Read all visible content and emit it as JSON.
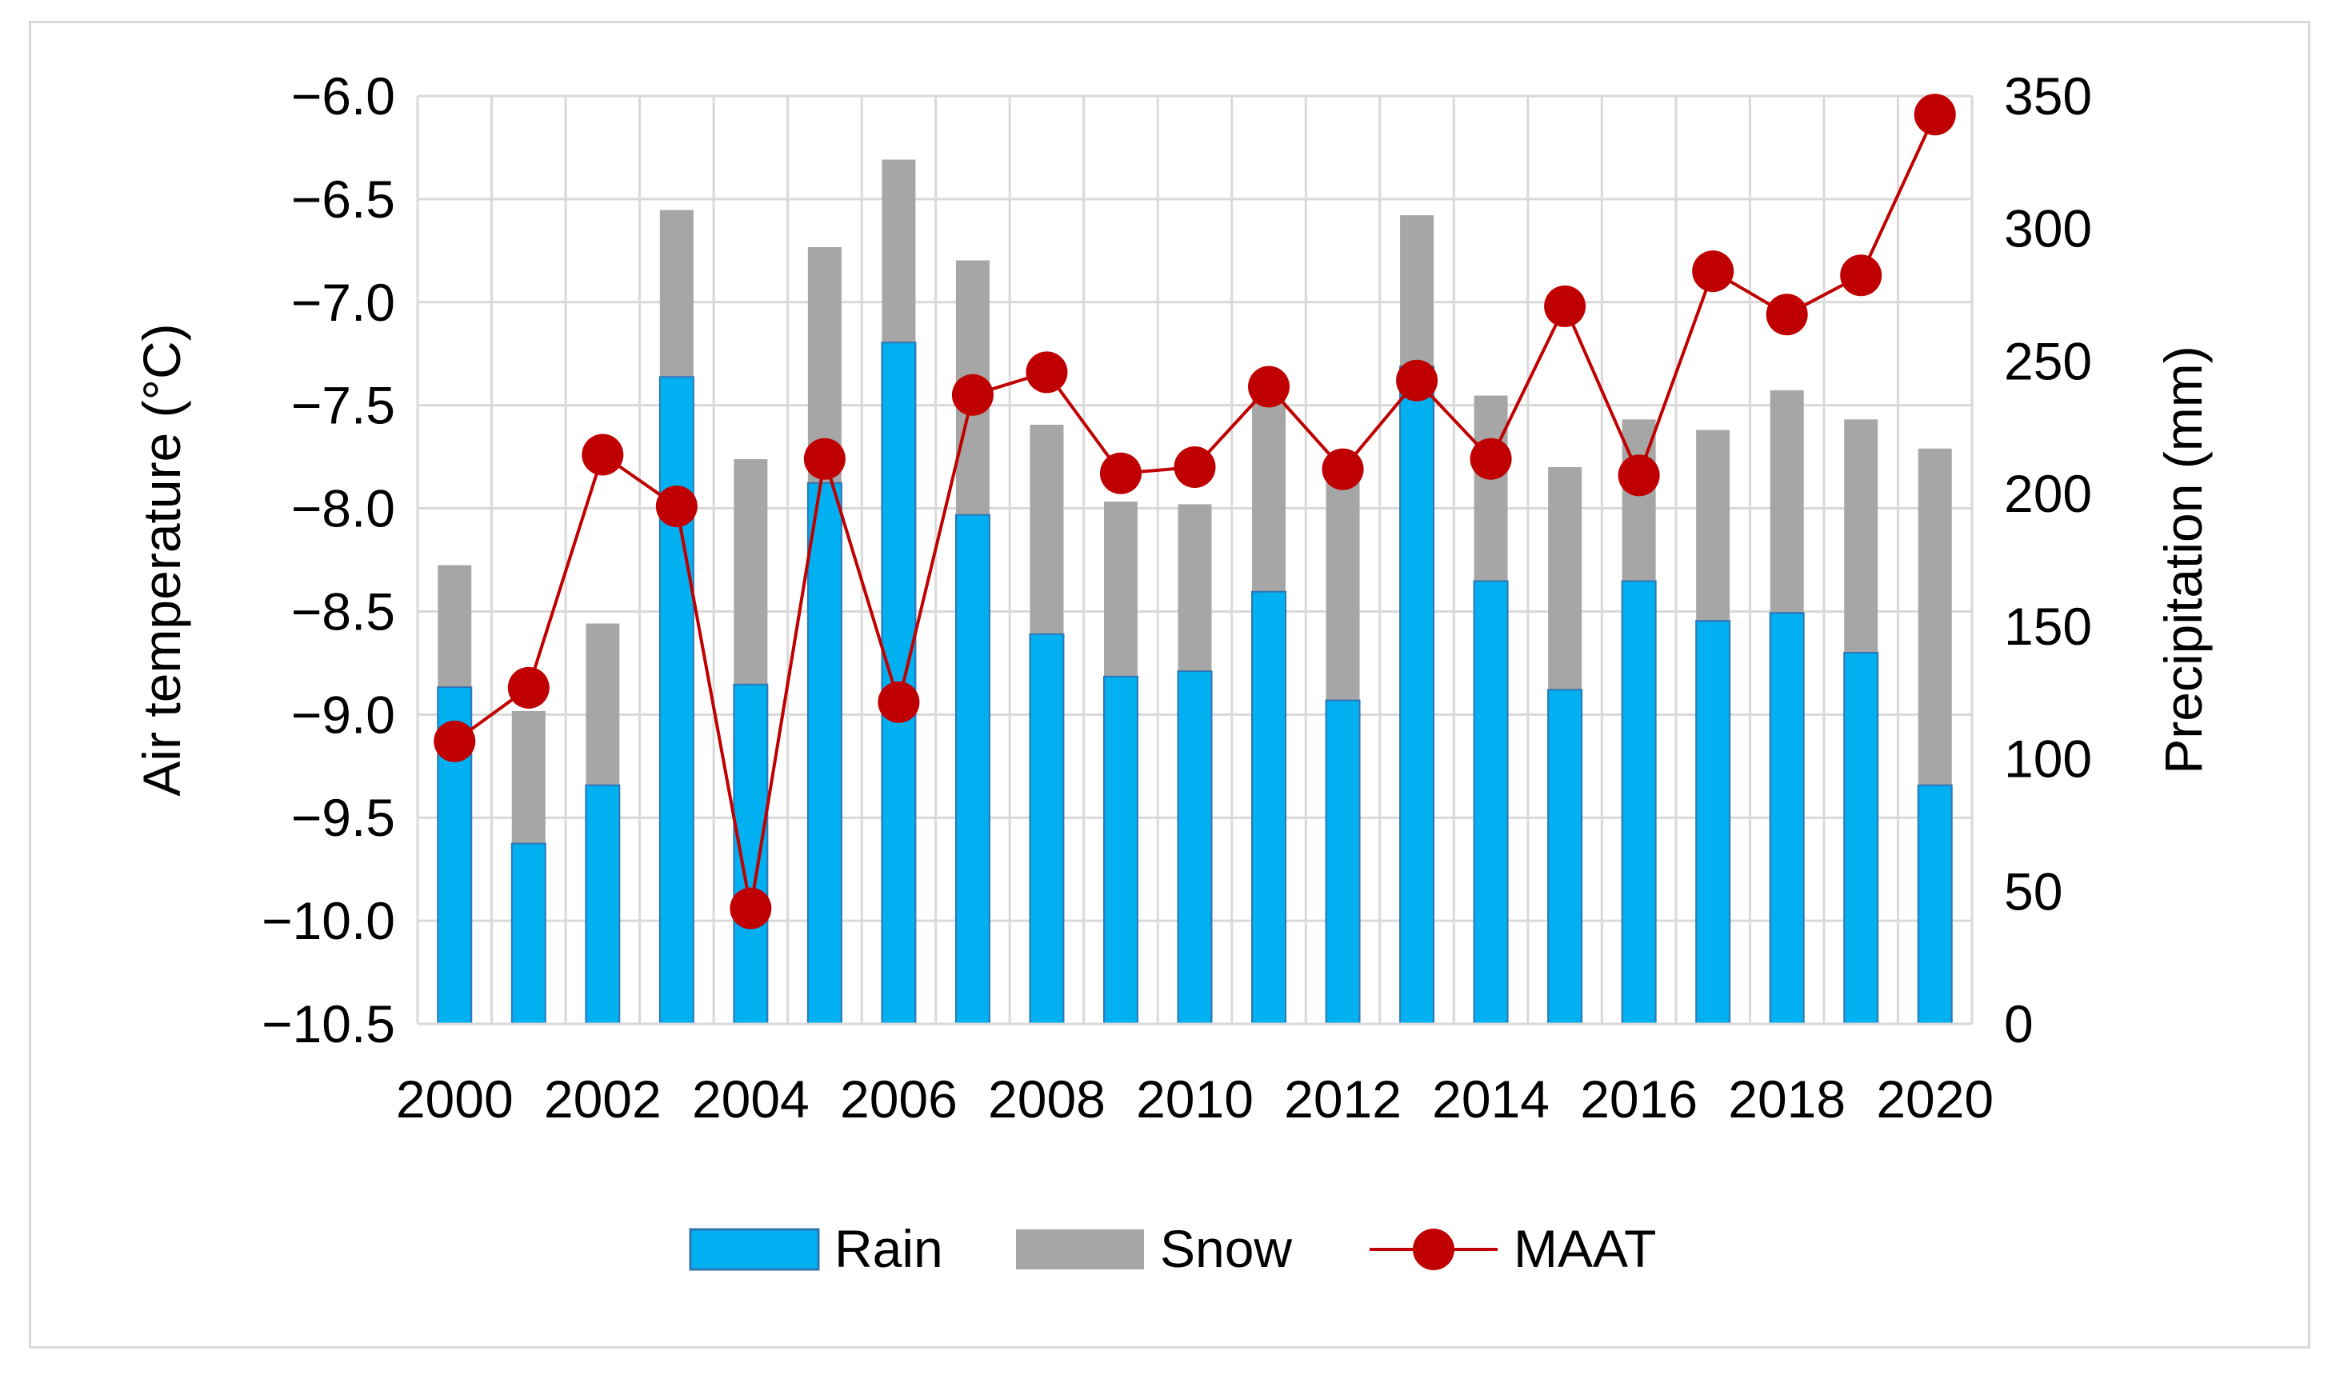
{
  "chart_data": {
    "type": "bar+line",
    "title": "",
    "xlabel": "",
    "ylabel_left": "Air temperature (°C)",
    "ylabel_right": "Precipitation (mm)",
    "ylim_left": [
      -10.5,
      -6.0
    ],
    "ylim_right": [
      0,
      350
    ],
    "yticks_left": [
      "−6.0",
      "−6.5",
      "−7.0",
      "−7.5",
      "−8.0",
      "−8.5",
      "−9.0",
      "−9.5",
      "−10.0",
      "−10.5"
    ],
    "yticks_right": [
      "350",
      "300",
      "250",
      "200",
      "150",
      "100",
      "50",
      "0"
    ],
    "xtick_labels": [
      "2000",
      "2002",
      "2004",
      "2006",
      "2008",
      "2010",
      "2012",
      "2014",
      "2016",
      "2018",
      "2020"
    ],
    "categories": [
      2000,
      2001,
      2002,
      2003,
      2004,
      2005,
      2006,
      2007,
      2008,
      2009,
      2010,
      2011,
      2012,
      2013,
      2014,
      2015,
      2016,
      2017,
      2018,
      2019,
      2020
    ],
    "series": [
      {
        "name": "Rain",
        "type": "stacked-bar",
        "axis": "right",
        "color": "#00b0f0",
        "values": [
          127,
          68,
          90,
          244,
          128,
          204,
          257,
          192,
          147,
          131,
          133,
          163,
          122,
          248,
          167,
          126,
          167,
          152,
          155,
          140,
          90
        ]
      },
      {
        "name": "Snow",
        "type": "stacked-bar",
        "axis": "right",
        "color": "#a6a6a6",
        "values": [
          46,
          50,
          61,
          63,
          85,
          89,
          69,
          96,
          79,
          66,
          63,
          76,
          90,
          57,
          70,
          84,
          61,
          72,
          84,
          88,
          127
        ]
      },
      {
        "name": "MAAT",
        "type": "line",
        "axis": "left",
        "color": "#c00000",
        "values": [
          -9.13,
          -8.87,
          -7.74,
          -7.99,
          -9.94,
          -7.76,
          -8.94,
          -7.45,
          -7.34,
          -7.83,
          -7.8,
          -7.41,
          -7.81,
          -7.38,
          -7.76,
          -7.02,
          -7.84,
          -6.85,
          -7.06,
          -6.87,
          -6.09
        ]
      }
    ],
    "legend": {
      "placement": "bottom",
      "labels": [
        "Rain",
        "Snow",
        "MAAT"
      ]
    }
  }
}
